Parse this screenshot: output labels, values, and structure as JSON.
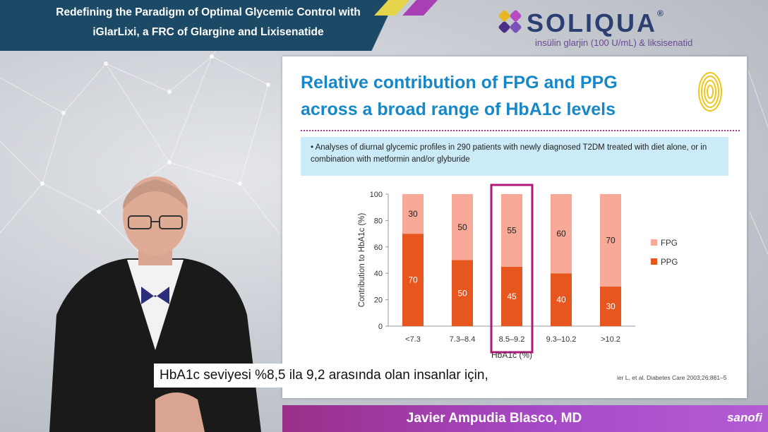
{
  "header": {
    "title_line1": "Redefining the Paradigm of Optimal Glycemic Control with",
    "title_line2": "iGlarLixi, a FRC of Glargine and Lixisenatide"
  },
  "brand": {
    "name": "SOLIQUA",
    "registered": "®",
    "subtitle": "insülin glarjin (100 U/mL) & liksisenatid"
  },
  "slide": {
    "title_line1": "Relative contribution of FPG and PPG",
    "title_line2": "across a broad range of HbA1c levels",
    "bullet": "• Analyses of diurnal glycemic profiles in 290 patients with newly diagnosed T2DM treated with diet alone, or in combination with metformin and/or glyburide",
    "reference": "ier L, et al. Diabetes Care 2003;26:881–5"
  },
  "chart_data": {
    "type": "bar",
    "stacked": true,
    "categories": [
      "<7.3",
      "7.3–8.4",
      "8.5–9.2",
      "9.3–10.2",
      ">10.2"
    ],
    "series": [
      {
        "name": "PPG",
        "values": [
          70,
          50,
          45,
          40,
          30
        ],
        "color": "#e8561f"
      },
      {
        "name": "FPG",
        "values": [
          30,
          50,
          55,
          60,
          70
        ],
        "color": "#f7a897"
      }
    ],
    "xlabel": "HbA1c (%)",
    "ylabel": "Contribution to HbA1c (%)",
    "ylim": [
      0,
      100
    ],
    "yticks": [
      0,
      20,
      40,
      60,
      80,
      100
    ],
    "legend_placement": "right",
    "highlight_category": "8.5–9.2",
    "highlight_color": "#b0187a"
  },
  "caption": {
    "text": "HbA1c seviyesi %8,5 ila 9,2 arasında olan insanlar için,"
  },
  "lower_third": {
    "speaker_name": "Javier Ampudia Blasco, MD",
    "company": "sanofi"
  },
  "colors": {
    "banner": "#1c4a66",
    "slide_title": "#1688c8",
    "bullet_box": "#ccebf8",
    "name_bar": "#a03c9c"
  }
}
